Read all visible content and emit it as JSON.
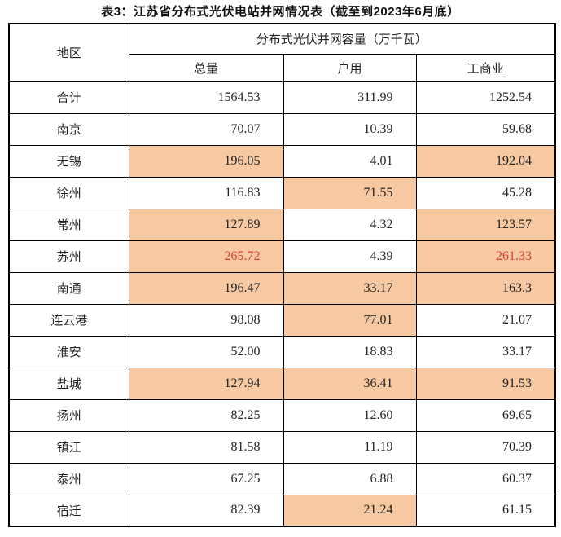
{
  "title": "表3：江苏省分布式光伏电站并网情况表（截至到2023年6月底）",
  "table": {
    "region_header": "地区",
    "capacity_header": "分布式光伏并网容量（万千瓦）",
    "columns": [
      "总量",
      "户用",
      "工商业"
    ],
    "rows": [
      {
        "region": "合计",
        "values": [
          "1564.53",
          "311.99",
          "1252.54"
        ],
        "highlight": [
          false,
          false,
          false
        ],
        "red": [
          false,
          false,
          false
        ]
      },
      {
        "region": "南京",
        "values": [
          "70.07",
          "10.39",
          "59.68"
        ],
        "highlight": [
          false,
          false,
          false
        ],
        "red": [
          false,
          false,
          false
        ]
      },
      {
        "region": "无锡",
        "values": [
          "196.05",
          "4.01",
          "192.04"
        ],
        "highlight": [
          true,
          false,
          true
        ],
        "red": [
          false,
          false,
          false
        ]
      },
      {
        "region": "徐州",
        "values": [
          "116.83",
          "71.55",
          "45.28"
        ],
        "highlight": [
          false,
          true,
          false
        ],
        "red": [
          false,
          false,
          false
        ]
      },
      {
        "region": "常州",
        "values": [
          "127.89",
          "4.32",
          "123.57"
        ],
        "highlight": [
          true,
          false,
          true
        ],
        "red": [
          false,
          false,
          false
        ]
      },
      {
        "region": "苏州",
        "values": [
          "265.72",
          "4.39",
          "261.33"
        ],
        "highlight": [
          true,
          false,
          true
        ],
        "red": [
          true,
          false,
          true
        ]
      },
      {
        "region": "南通",
        "values": [
          "196.47",
          "33.17",
          "163.3"
        ],
        "highlight": [
          true,
          true,
          true
        ],
        "red": [
          false,
          false,
          false
        ]
      },
      {
        "region": "连云港",
        "values": [
          "98.08",
          "77.01",
          "21.07"
        ],
        "highlight": [
          false,
          true,
          false
        ],
        "red": [
          false,
          false,
          false
        ]
      },
      {
        "region": "淮安",
        "values": [
          "52.00",
          "18.83",
          "33.17"
        ],
        "highlight": [
          false,
          false,
          false
        ],
        "red": [
          false,
          false,
          false
        ]
      },
      {
        "region": "盐城",
        "values": [
          "127.94",
          "36.41",
          "91.53"
        ],
        "highlight": [
          true,
          true,
          true
        ],
        "red": [
          false,
          false,
          false
        ]
      },
      {
        "region": "扬州",
        "values": [
          "82.25",
          "12.60",
          "69.65"
        ],
        "highlight": [
          false,
          false,
          false
        ],
        "red": [
          false,
          false,
          false
        ]
      },
      {
        "region": "镇江",
        "values": [
          "81.58",
          "11.19",
          "70.39"
        ],
        "highlight": [
          false,
          false,
          false
        ],
        "red": [
          false,
          false,
          false
        ]
      },
      {
        "region": "泰州",
        "values": [
          "67.25",
          "6.88",
          "60.37"
        ],
        "highlight": [
          false,
          false,
          false
        ],
        "red": [
          false,
          false,
          false
        ]
      },
      {
        "region": "宿迁",
        "values": [
          "82.39",
          "21.24",
          "61.15"
        ],
        "highlight": [
          false,
          true,
          false
        ],
        "red": [
          false,
          false,
          false
        ]
      }
    ]
  },
  "colors": {
    "highlight_bg": "#f6c9a3",
    "red_text": "#e03a30",
    "border": "#000000"
  }
}
